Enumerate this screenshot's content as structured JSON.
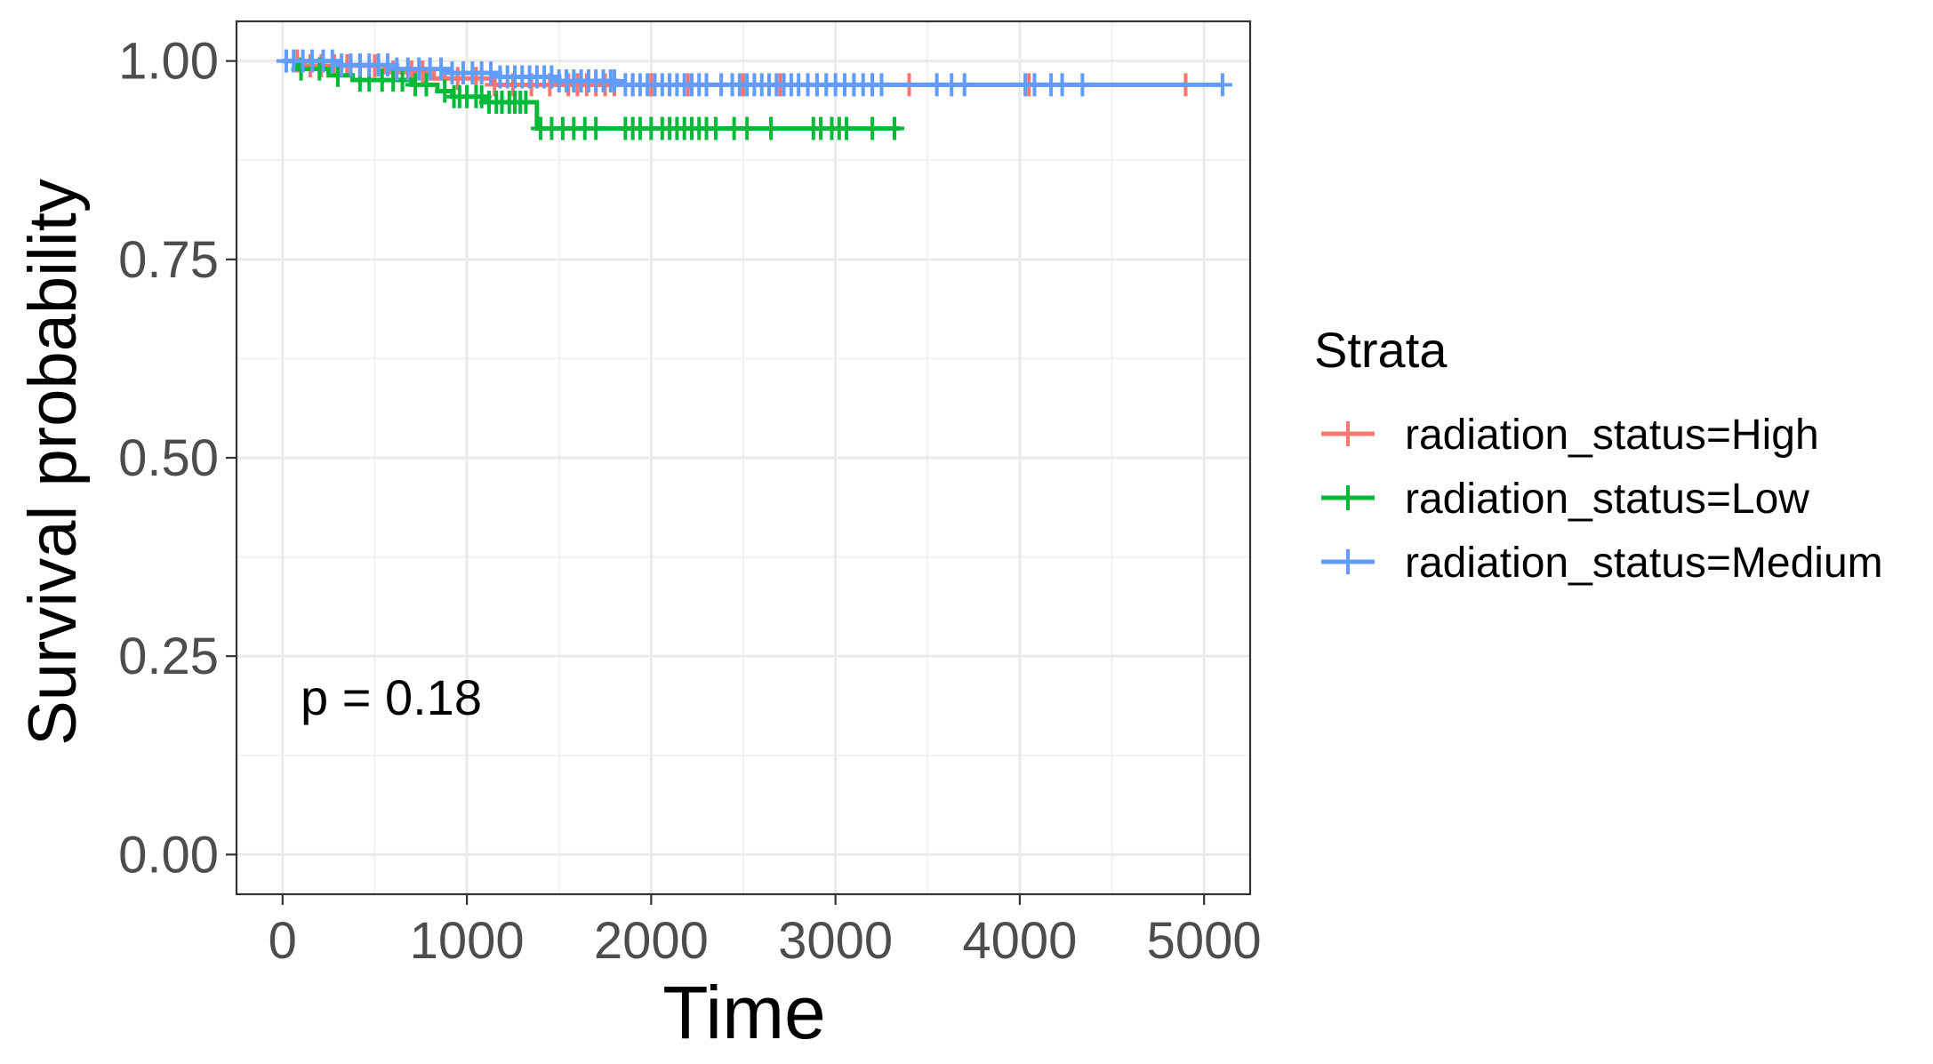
{
  "chart_data": {
    "type": "line",
    "subtype": "kaplan-meier",
    "title": "",
    "xlabel": "Time",
    "ylabel": "Survival probability",
    "xlim": [
      -250,
      5250
    ],
    "ylim": [
      -0.05,
      1.05
    ],
    "x_ticks": [
      0,
      1000,
      2000,
      3000,
      4000,
      5000
    ],
    "y_ticks": [
      0.0,
      0.25,
      0.5,
      0.75,
      1.0
    ],
    "x_tick_labels": [
      "0",
      "1000",
      "2000",
      "3000",
      "4000",
      "5000"
    ],
    "y_tick_labels": [
      "0.00",
      "0.25",
      "0.50",
      "0.75",
      "1.00"
    ],
    "grid": true,
    "annotation": "p = 0.18",
    "legend": {
      "title": "Strata",
      "position": "right"
    },
    "series": [
      {
        "name": "radiation_status=High",
        "color": "#F8766D",
        "steps": [
          [
            0,
            1.0
          ],
          [
            120,
            0.994
          ],
          [
            560,
            0.986
          ],
          [
            820,
            0.978
          ],
          [
            1150,
            0.97
          ],
          [
            4900,
            0.97
          ]
        ],
        "censor": [
          80,
          150,
          210,
          280,
          350,
          420,
          500,
          600,
          700,
          760,
          880,
          950,
          1050,
          1150,
          1250,
          1350,
          1450,
          1550,
          1600,
          1650,
          1700,
          1750,
          1800,
          1900,
          2000,
          2100,
          2200,
          2300,
          2500,
          2700,
          2900,
          3100,
          3200,
          3400,
          4050,
          4900
        ]
      },
      {
        "name": "radiation_status=Low",
        "color": "#00BA38",
        "steps": [
          [
            0,
            1.0
          ],
          [
            80,
            0.99
          ],
          [
            250,
            0.982
          ],
          [
            380,
            0.976
          ],
          [
            700,
            0.97
          ],
          [
            840,
            0.962
          ],
          [
            920,
            0.955
          ],
          [
            1100,
            0.948
          ],
          [
            1380,
            0.915
          ],
          [
            3350,
            0.915
          ]
        ],
        "censor": [
          100,
          200,
          300,
          420,
          470,
          540,
          600,
          650,
          720,
          780,
          880,
          930,
          960,
          1000,
          1050,
          1080,
          1120,
          1160,
          1190,
          1230,
          1260,
          1290,
          1320,
          1400,
          1460,
          1520,
          1580,
          1640,
          1700,
          1860,
          1900,
          1940,
          2000,
          2060,
          2100,
          2140,
          2180,
          2220,
          2260,
          2300,
          2350,
          2450,
          2520,
          2650,
          2880,
          2920,
          2980,
          3020,
          3060,
          3200,
          3320
        ]
      },
      {
        "name": "radiation_status=Medium",
        "color": "#619CFF",
        "steps": [
          [
            0,
            1.0
          ],
          [
            300,
            0.995
          ],
          [
            620,
            0.99
          ],
          [
            900,
            0.985
          ],
          [
            1180,
            0.98
          ],
          [
            1500,
            0.975
          ],
          [
            1820,
            0.97
          ],
          [
            5100,
            0.97
          ]
        ],
        "censor": [
          20,
          60,
          110,
          160,
          220,
          270,
          320,
          370,
          420,
          470,
          520,
          570,
          620,
          680,
          740,
          800,
          860,
          920,
          980,
          1030,
          1080,
          1130,
          1180,
          1220,
          1260,
          1300,
          1340,
          1380,
          1420,
          1460,
          1500,
          1540,
          1580,
          1620,
          1660,
          1700,
          1740,
          1780,
          1800,
          1860,
          1900,
          1940,
          1980,
          2020,
          2060,
          2100,
          2140,
          2180,
          2220,
          2260,
          2300,
          2380,
          2440,
          2480,
          2520,
          2560,
          2600,
          2640,
          2680,
          2720,
          2760,
          2800,
          2850,
          2900,
          2950,
          3000,
          3050,
          3100,
          3150,
          3200,
          3250,
          3550,
          3630,
          3700,
          4030,
          4080,
          4170,
          4230,
          4340,
          5100
        ]
      }
    ]
  }
}
